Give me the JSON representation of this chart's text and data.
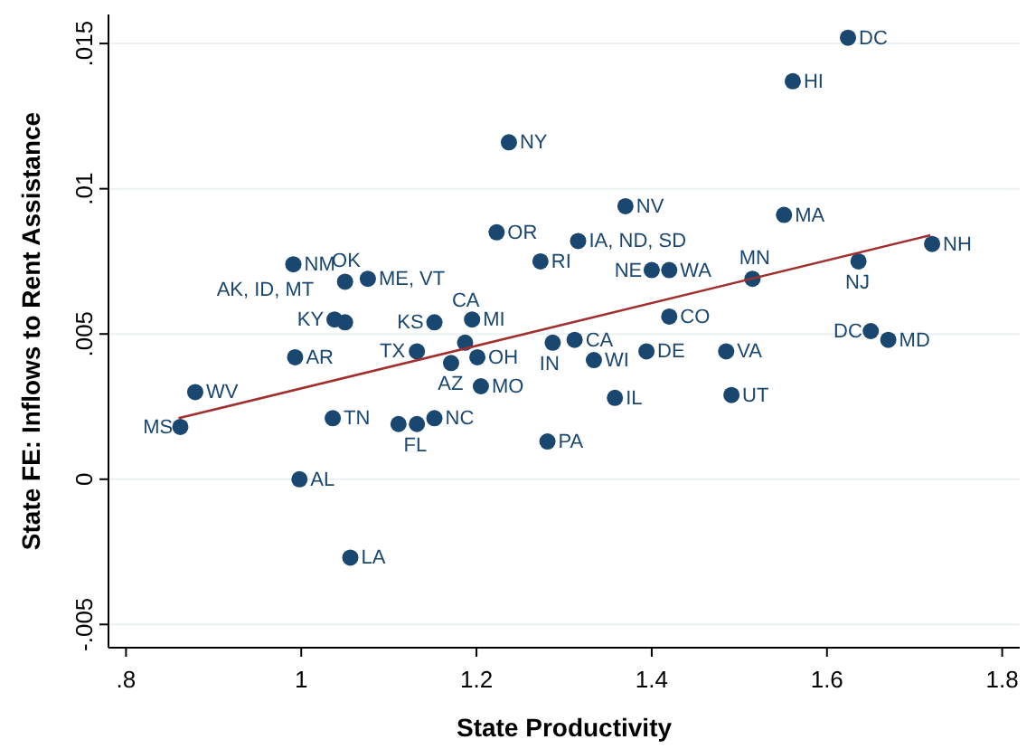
{
  "chart_data": {
    "type": "scatter",
    "xlabel": "State Productivity",
    "ylabel": "State FE: Inflows to Rent Assistance",
    "xlim": [
      0.78,
      1.82
    ],
    "ylim": [
      -0.0058,
      0.016
    ],
    "xticks": [
      {
        "value": 0.8,
        "label": ".8"
      },
      1,
      1.2,
      1.4,
      1.6,
      1.8
    ],
    "yticks": [
      {
        "value": -0.005,
        "label": "-.005"
      },
      0,
      {
        "value": 0.005,
        "label": ".005"
      },
      {
        "value": 0.01,
        "label": ".01"
      },
      {
        "value": 0.015,
        "label": ".015"
      }
    ],
    "grid": "y",
    "marker": "circle",
    "series": [
      {
        "type": "scatter",
        "color": "#1a476f",
        "x": [
          1.624,
          1.561,
          1.237,
          1.37,
          1.551,
          1.223,
          1.316,
          1.273,
          0.991,
          1.05,
          1.076,
          1.72,
          1.636,
          1.4,
          1.42,
          1.515,
          1.038,
          1.05,
          1.152,
          1.195,
          1.42,
          1.187,
          1.132,
          1.171,
          1.201,
          0.993,
          1.205,
          0.879,
          0.862,
          1.036,
          1.111,
          1.132,
          1.152,
          0.998,
          1.056,
          1.281,
          1.287,
          1.312,
          1.334,
          1.394,
          1.485,
          1.358,
          1.491,
          1.65,
          1.67
        ],
        "values": [
          0.0152,
          0.0137,
          0.0116,
          0.0094,
          0.0091,
          0.0085,
          0.0082,
          0.0075,
          0.0074,
          0.0068,
          0.0069,
          0.0081,
          0.0075,
          0.0072,
          0.0072,
          0.0069,
          0.0055,
          0.0054,
          0.0054,
          0.0055,
          0.0056,
          0.0047,
          0.0044,
          0.004,
          0.0042,
          0.0042,
          0.0032,
          0.003,
          0.0018,
          0.0021,
          0.0019,
          0.0019,
          0.0021,
          0.0,
          -0.0027,
          0.0013,
          0.0047,
          0.0048,
          0.0041,
          0.0044,
          0.0044,
          0.0028,
          0.0029,
          0.0051,
          0.0048
        ],
        "value_labels": [
          "DC",
          "HI",
          "NY",
          "NV",
          "MA",
          "OR",
          "IA, ND, SD",
          "RI",
          "NM",
          "OK",
          "ME, VT",
          "NH",
          "NJ",
          "NE",
          "WA",
          "MN",
          "KY",
          "AK, ID, MT",
          "KS",
          "MI",
          "CO",
          "CA",
          "TX",
          "AZ",
          "OH",
          "AR",
          "MO",
          "WV",
          "MS",
          "TN",
          null,
          "FL",
          "NC",
          "AL",
          "LA",
          "PA",
          "IN",
          "CA",
          "WI",
          "DE",
          "VA",
          "IL",
          "UT",
          "DC",
          "MD"
        ]
      },
      {
        "type": "line",
        "color": "#a0302d",
        "x": [
          0.86,
          1.718
        ],
        "values": [
          0.0021,
          0.0084
        ],
        "marker": "none"
      }
    ]
  }
}
